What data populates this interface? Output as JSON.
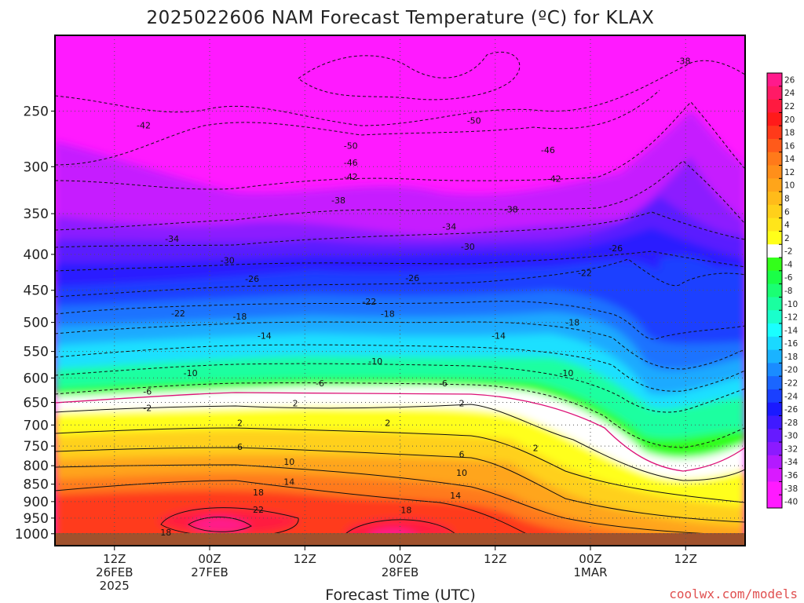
{
  "chart_data": {
    "type": "heatmap",
    "title": "2025022606 NAM Forecast Temperature (ºC) for KLAX",
    "xlabel": "Forecast Time (UTC)",
    "ylabel": "",
    "credit": "coolwx.com/models",
    "y_scale": "log-pressure",
    "y_ticks": [
      "250",
      "300",
      "350",
      "400",
      "450",
      "500",
      "550",
      "600",
      "650",
      "700",
      "750",
      "800",
      "850",
      "900",
      "950",
      "1000"
    ],
    "x_ticks": [
      {
        "line1": "12Z",
        "line2": "26FEB",
        "line3": "2025"
      },
      {
        "line1": "00Z",
        "line2": "27FEB",
        "line3": ""
      },
      {
        "line1": "12Z",
        "line2": "",
        "line3": ""
      },
      {
        "line1": "00Z",
        "line2": "28FEB",
        "line3": ""
      },
      {
        "line1": "12Z",
        "line2": "",
        "line3": ""
      },
      {
        "line1": "00Z",
        "line2": "1MAR",
        "line3": ""
      },
      {
        "line1": "12Z",
        "line2": "",
        "line3": ""
      }
    ],
    "x_hours": [
      6,
      54
    ],
    "y_range_hpa": [
      1040,
      195
    ],
    "colorbar": {
      "labels": [
        "26",
        "24",
        "22",
        "20",
        "18",
        "16",
        "14",
        "12",
        "10",
        "8",
        "6",
        "4",
        "2",
        "-2",
        "-4",
        "-6",
        "-8",
        "-10",
        "-12",
        "-14",
        "-16",
        "-18",
        "-20",
        "-22",
        "-24",
        "-26",
        "-28",
        "-30",
        "-32",
        "-34",
        "-36",
        "-38",
        "-40"
      ],
      "colors": [
        "#ff1a8c",
        "#ff1a66",
        "#ff1a40",
        "#ff1a1a",
        "#ff3a1a",
        "#ff5a1a",
        "#ff7a1a",
        "#ff8f1a",
        "#ffa51a",
        "#ffbb1a",
        "#ffd01a",
        "#ffe51a",
        "#ffff1a",
        "#ffffff",
        "#33ff1a",
        "#1aff47",
        "#1aff73",
        "#1affa0",
        "#1affcc",
        "#1affff",
        "#1ad9ff",
        "#1ab3ff",
        "#1a8cff",
        "#1a66ff",
        "#1a40ff",
        "#1a1aff",
        "#401aff",
        "#661aff",
        "#8c1aff",
        "#b31aff",
        "#d91aff",
        "#ff1aff",
        "#ff1aff"
      ]
    },
    "contour_labels": [
      {
        "t": "-38",
        "h": 51.0,
        "p": 212
      },
      {
        "t": "-42",
        "h": 7.2,
        "p": 262
      },
      {
        "t": "-50",
        "h": 34.0,
        "p": 258
      },
      {
        "t": "-50",
        "h": 24.0,
        "p": 280
      },
      {
        "t": "-46",
        "h": 40.0,
        "p": 284
      },
      {
        "t": "-46",
        "h": 24.0,
        "p": 296
      },
      {
        "t": "-42",
        "h": 24.0,
        "p": 310
      },
      {
        "t": "-42",
        "h": 40.5,
        "p": 312
      },
      {
        "t": "-38",
        "h": 23.0,
        "p": 335
      },
      {
        "t": "-38",
        "h": 37.0,
        "p": 345
      },
      {
        "t": "-34",
        "h": 9.5,
        "p": 380
      },
      {
        "t": "-34",
        "h": 32.0,
        "p": 365
      },
      {
        "t": "-30",
        "h": 14.0,
        "p": 408
      },
      {
        "t": "-30",
        "h": 33.5,
        "p": 390
      },
      {
        "t": "-26",
        "h": 16.0,
        "p": 433
      },
      {
        "t": "-26",
        "h": 29.0,
        "p": 432
      },
      {
        "t": "-26",
        "h": 45.5,
        "p": 392
      },
      {
        "t": "-22",
        "h": 10.0,
        "p": 485
      },
      {
        "t": "-22",
        "h": 25.5,
        "p": 467
      },
      {
        "t": "-22",
        "h": 43.0,
        "p": 425
      },
      {
        "t": "-18",
        "h": 15.0,
        "p": 490
      },
      {
        "t": "-18",
        "h": 27.0,
        "p": 486
      },
      {
        "t": "-18",
        "h": 42.0,
        "p": 500
      },
      {
        "t": "-14",
        "h": 17.0,
        "p": 522
      },
      {
        "t": "-14",
        "h": 36.0,
        "p": 522
      },
      {
        "t": "-10",
        "h": 11.0,
        "p": 590
      },
      {
        "t": "-10",
        "h": 26.0,
        "p": 568
      },
      {
        "t": "-10",
        "h": 41.5,
        "p": 590
      },
      {
        "t": "-6",
        "h": 7.5,
        "p": 627
      },
      {
        "t": "-6",
        "h": 21.5,
        "p": 610
      },
      {
        "t": "-6",
        "h": 31.5,
        "p": 610
      },
      {
        "t": "-2",
        "h": 7.5,
        "p": 662
      },
      {
        "t": "2",
        "h": 19.5,
        "p": 652
      },
      {
        "t": "2",
        "h": 33.0,
        "p": 652
      },
      {
        "t": "2",
        "h": 15.0,
        "p": 695
      },
      {
        "t": "2",
        "h": 27.0,
        "p": 695
      },
      {
        "t": "2",
        "h": 39.0,
        "p": 755
      },
      {
        "t": "6",
        "h": 15.0,
        "p": 752
      },
      {
        "t": "6",
        "h": 33.0,
        "p": 770
      },
      {
        "t": "10",
        "h": 19.0,
        "p": 790
      },
      {
        "t": "10",
        "h": 33.0,
        "p": 818
      },
      {
        "t": "14",
        "h": 19.0,
        "p": 843
      },
      {
        "t": "14",
        "h": 32.5,
        "p": 882
      },
      {
        "t": "18",
        "h": 16.5,
        "p": 873
      },
      {
        "t": "18",
        "h": 28.5,
        "p": 925
      },
      {
        "t": "18",
        "h": 9.0,
        "p": 995
      },
      {
        "t": "22",
        "h": 16.5,
        "p": 924
      }
    ]
  }
}
